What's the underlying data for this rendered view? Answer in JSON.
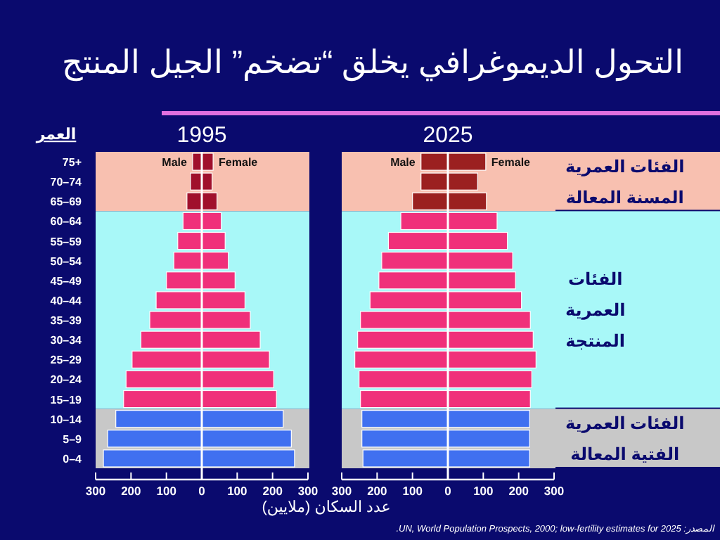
{
  "chart_data": [
    {
      "type": "bar",
      "orientation": "horizontal",
      "stacked": true,
      "title": "التحول الديموغرافي يخلق “تضخم” الجيل المنتج",
      "subtitle": "1995",
      "ylabel": "العمر",
      "xlabel": "عدد السكان (ملايين)",
      "categories": [
        "75+",
        "70–74",
        "65–69",
        "60–64",
        "55–59",
        "50–54",
        "45–49",
        "40–44",
        "35–39",
        "30–34",
        "25–29",
        "20–24",
        "15–19",
        "10–14",
        "5–9",
        "0–4"
      ],
      "series": [
        {
          "name": "Male",
          "values": [
            -26,
            -32,
            -42,
            -53,
            -68,
            -79,
            -100,
            -129,
            -147,
            -172,
            -197,
            -214,
            -221,
            -243,
            -266,
            -278
          ],
          "colors": [
            "#a0102c",
            "#a0102c",
            "#a0102c",
            "#f0307a",
            "#f0307a",
            "#f0307a",
            "#f0307a",
            "#f0307a",
            "#f0307a",
            "#f0307a",
            "#f0307a",
            "#f0307a",
            "#f0307a",
            "#4070f0",
            "#4070f0",
            "#4070f0"
          ]
        },
        {
          "name": "Female",
          "values": [
            32,
            29,
            43,
            55,
            66,
            75,
            94,
            122,
            137,
            165,
            191,
            203,
            211,
            230,
            253,
            262
          ],
          "colors": [
            "#a0102c",
            "#a0102c",
            "#a0102c",
            "#f0307a",
            "#f0307a",
            "#f0307a",
            "#f0307a",
            "#f0307a",
            "#f0307a",
            "#f0307a",
            "#f0307a",
            "#f0307a",
            "#f0307a",
            "#4070f0",
            "#4070f0",
            "#4070f0"
          ]
        }
      ],
      "xlim": [
        -300,
        300
      ],
      "xticks": [
        {
          "value": -300,
          "label": "300"
        },
        {
          "value": -200,
          "label": "200"
        },
        {
          "value": -100,
          "label": "100"
        },
        0,
        100,
        200,
        300
      ],
      "bands": [
        {
          "axis": "y",
          "from": "75+",
          "to": "65–69",
          "color": "#f8c0b0"
        },
        {
          "axis": "y",
          "from": "60–64",
          "to": "15–19",
          "color": "#a8f8f8"
        },
        {
          "axis": "y",
          "from": "10–14",
          "to": "0–4",
          "color": "#c8c8c8"
        }
      ]
    },
    {
      "type": "bar",
      "orientation": "horizontal",
      "stacked": true,
      "tick_labels": "x",
      "subtitle": "2025",
      "categories": [
        "75+",
        "70–74",
        "65–69",
        "60–64",
        "55–59",
        "50–54",
        "45–49",
        "40–44",
        "35–39",
        "30–34",
        "25–29",
        "20–24",
        "15–19",
        "10–14",
        "5–9",
        "0–4"
      ],
      "series": [
        {
          "name": "Male",
          "values": [
            -76,
            -76,
            -100,
            -133,
            -168,
            -187,
            -195,
            -220,
            -247,
            -255,
            -263,
            -251,
            -247,
            -243,
            -243,
            -240
          ],
          "colors": [
            "#9b2020",
            "#9b2020",
            "#9b2020",
            "#f0307a",
            "#f0307a",
            "#f0307a",
            "#f0307a",
            "#f0307a",
            "#f0307a",
            "#f0307a",
            "#f0307a",
            "#f0307a",
            "#f0307a",
            "#4070f0",
            "#4070f0",
            "#4070f0"
          ]
        },
        {
          "name": "Female",
          "values": [
            107,
            84,
            109,
            139,
            168,
            183,
            191,
            208,
            233,
            241,
            249,
            237,
            233,
            231,
            231,
            231
          ],
          "colors": [
            "#9b2020",
            "#9b2020",
            "#9b2020",
            "#f0307a",
            "#f0307a",
            "#f0307a",
            "#f0307a",
            "#f0307a",
            "#f0307a",
            "#f0307a",
            "#f0307a",
            "#f0307a",
            "#f0307a",
            "#4070f0",
            "#4070f0",
            "#4070f0"
          ]
        }
      ],
      "xlim": [
        -300,
        300
      ],
      "xticks": [
        {
          "value": -300,
          "label": "300"
        },
        {
          "value": -200,
          "label": "200"
        },
        {
          "value": -100,
          "label": "100"
        },
        0,
        100,
        200,
        300
      ],
      "bands": [
        {
          "axis": "y",
          "from": "75+",
          "to": "65–69",
          "color": "#f8c0b0",
          "label": "الفئات العمرية\nالمسنة المعالة"
        },
        {
          "axis": "y",
          "from": "60–64",
          "to": "15–19",
          "color": "#a8f8f8",
          "label": "الفئات\nالعمرية\nالمنتجة"
        },
        {
          "axis": "y",
          "from": "10–14",
          "to": "0–4",
          "color": "#c8c8c8",
          "label": "الفئات العمرية\nالفتية المعالة"
        }
      ],
      "annotations": [
        "المصدر: UN, World Population Prospects, 2000; low-fertility estimates for 2025."
      ]
    }
  ]
}
